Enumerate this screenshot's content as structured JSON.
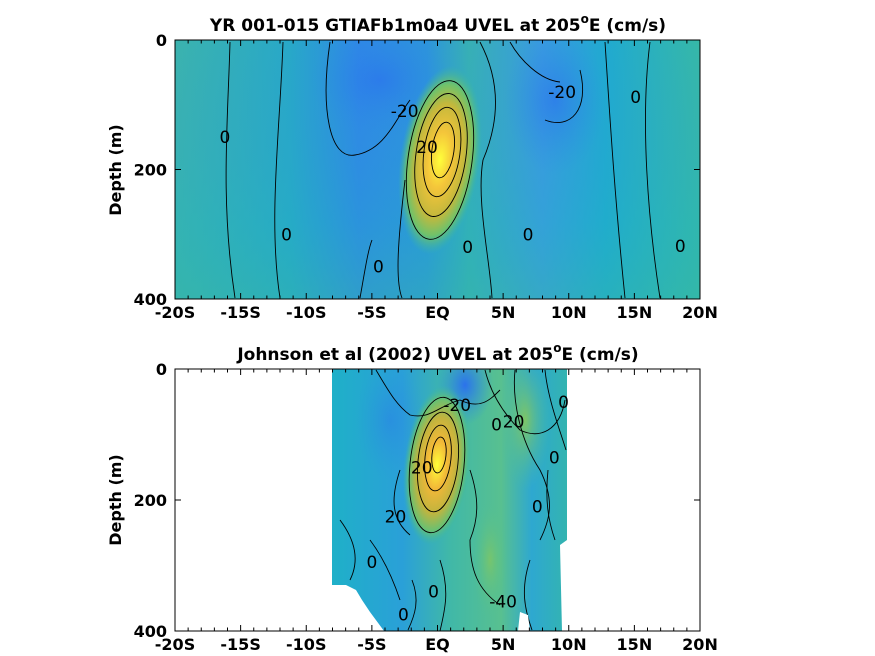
{
  "colors": {
    "background": "#ffffff",
    "axis": "#000000",
    "contour": "#000000"
  },
  "chart_data": [
    {
      "type": "heatmap",
      "title_main": "YR 001-015 GTIAFb1m0a4 UVEL at 205",
      "title_sup": "o",
      "title_end": "E (cm/s)",
      "xlabel": "",
      "ylabel": "Depth (m)",
      "xlim": [
        -20,
        20
      ],
      "ylim": [
        0,
        400
      ],
      "y_reversed": true,
      "x_ticks": [
        -20,
        -15,
        -10,
        -5,
        0,
        5,
        10,
        15,
        20
      ],
      "x_tick_labels": [
        "-20S",
        "-15S",
        "-10S",
        "-5S",
        "EQ",
        "5N",
        "10N",
        "15N",
        "20N"
      ],
      "y_ticks": [
        0,
        200,
        400
      ],
      "y_tick_labels": [
        "0",
        "200",
        "400"
      ],
      "contour_labels": [
        {
          "text": "0",
          "lat": -16.2,
          "depth": 150
        },
        {
          "text": "-20",
          "lat": -2.5,
          "depth": 110
        },
        {
          "text": "20",
          "lat": -0.8,
          "depth": 165
        },
        {
          "text": "0",
          "lat": -11.5,
          "depth": 300
        },
        {
          "text": "0",
          "lat": -4.5,
          "depth": 350
        },
        {
          "text": "0",
          "lat": 2.3,
          "depth": 320
        },
        {
          "text": "0",
          "lat": 6.9,
          "depth": 300
        },
        {
          "text": "-20",
          "lat": 9.5,
          "depth": 80
        },
        {
          "text": "0",
          "lat": 15.1,
          "depth": 88
        },
        {
          "text": "0",
          "lat": 18.5,
          "depth": 318
        }
      ],
      "features": [
        {
          "kind": "max",
          "lat": 0.5,
          "depth": 150,
          "value": 100
        },
        {
          "kind": "min",
          "lat": -3,
          "depth": 30,
          "value": -35
        },
        {
          "kind": "min",
          "lat": 8.5,
          "depth": 90,
          "value": -30
        }
      ]
    },
    {
      "type": "heatmap",
      "title_main": "Johnson et al (2002) UVEL at 205",
      "title_sup": "o",
      "title_end": "E (cm/s)",
      "xlabel": "",
      "ylabel": "Depth (m)",
      "xlim": [
        -20,
        20
      ],
      "ylim": [
        0,
        400
      ],
      "y_reversed": true,
      "data_lat_range": [
        -8,
        10
      ],
      "x_ticks": [
        -20,
        -15,
        -10,
        -5,
        0,
        5,
        10,
        15,
        20
      ],
      "x_tick_labels": [
        "-20S",
        "-15S",
        "-10S",
        "-5S",
        "EQ",
        "5N",
        "10N",
        "15N",
        "20N"
      ],
      "y_ticks": [
        0,
        200,
        400
      ],
      "y_tick_labels": [
        "0",
        "200",
        "400"
      ],
      "contour_labels": [
        {
          "text": "-20",
          "lat": 1.5,
          "depth": 55
        },
        {
          "text": "20",
          "lat": 5.8,
          "depth": 80
        },
        {
          "text": "0",
          "lat": 4.5,
          "depth": 85
        },
        {
          "text": "0",
          "lat": 9.6,
          "depth": 50
        },
        {
          "text": "0",
          "lat": 8.9,
          "depth": 135
        },
        {
          "text": "20",
          "lat": -1.2,
          "depth": 150
        },
        {
          "text": "0",
          "lat": 7.6,
          "depth": 210
        },
        {
          "text": "20",
          "lat": -3.2,
          "depth": 225
        },
        {
          "text": "0",
          "lat": -5,
          "depth": 295
        },
        {
          "text": "0",
          "lat": -0.3,
          "depth": 340
        },
        {
          "text": "0",
          "lat": -2.6,
          "depth": 375
        },
        {
          "text": "-40",
          "lat": 5,
          "depth": 355
        }
      ],
      "features": [
        {
          "kind": "max",
          "lat": 0,
          "depth": 140,
          "value": 100
        },
        {
          "kind": "min",
          "lat": 2.5,
          "depth": 10,
          "value": -40
        },
        {
          "kind": "max",
          "lat": 7,
          "depth": 40,
          "value": 45
        }
      ]
    }
  ]
}
